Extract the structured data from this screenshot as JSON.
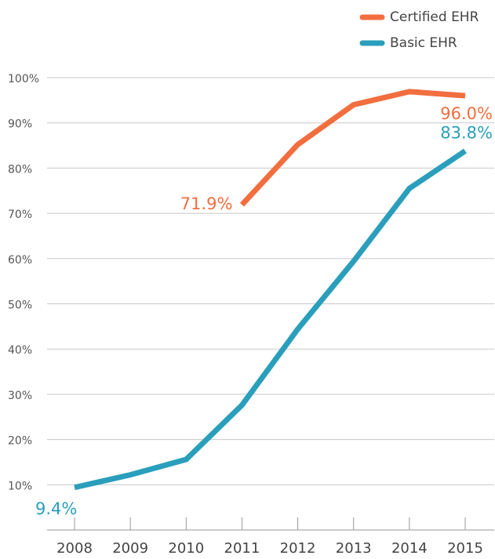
{
  "chart_data": {
    "type": "line",
    "x": [
      2008,
      2009,
      2010,
      2011,
      2012,
      2013,
      2014,
      2015
    ],
    "series": [
      {
        "name": "Certified EHR",
        "color": "#f26e3f",
        "values": [
          null,
          null,
          null,
          71.9,
          85.2,
          94.0,
          96.9,
          96.0
        ],
        "value_labels": [
          null,
          null,
          null,
          "71.9%",
          null,
          null,
          null,
          "96.0%"
        ]
      },
      {
        "name": "Basic EHR",
        "color": "#2a9fbc",
        "values": [
          9.4,
          12.2,
          15.6,
          27.6,
          44.4,
          59.4,
          75.5,
          83.8
        ],
        "value_labels": [
          "9.4%",
          null,
          null,
          null,
          null,
          null,
          null,
          "83.8%"
        ]
      }
    ],
    "xlim": [
      2008,
      2015
    ],
    "ylim": [
      0,
      100
    ],
    "yticks": [
      {
        "value": 10,
        "label": "10%"
      },
      {
        "value": 20,
        "label": "20%"
      },
      {
        "value": 30,
        "label": "30%"
      },
      {
        "value": 40,
        "label": "40%"
      },
      {
        "value": 50,
        "label": "50%"
      },
      {
        "value": 60,
        "label": "60%"
      },
      {
        "value": 70,
        "label": "70%"
      },
      {
        "value": 80,
        "label": "80%"
      },
      {
        "value": 90,
        "label": "90%"
      },
      {
        "value": 100,
        "label": "100%"
      }
    ],
    "grid": true,
    "legend": "top-right"
  }
}
